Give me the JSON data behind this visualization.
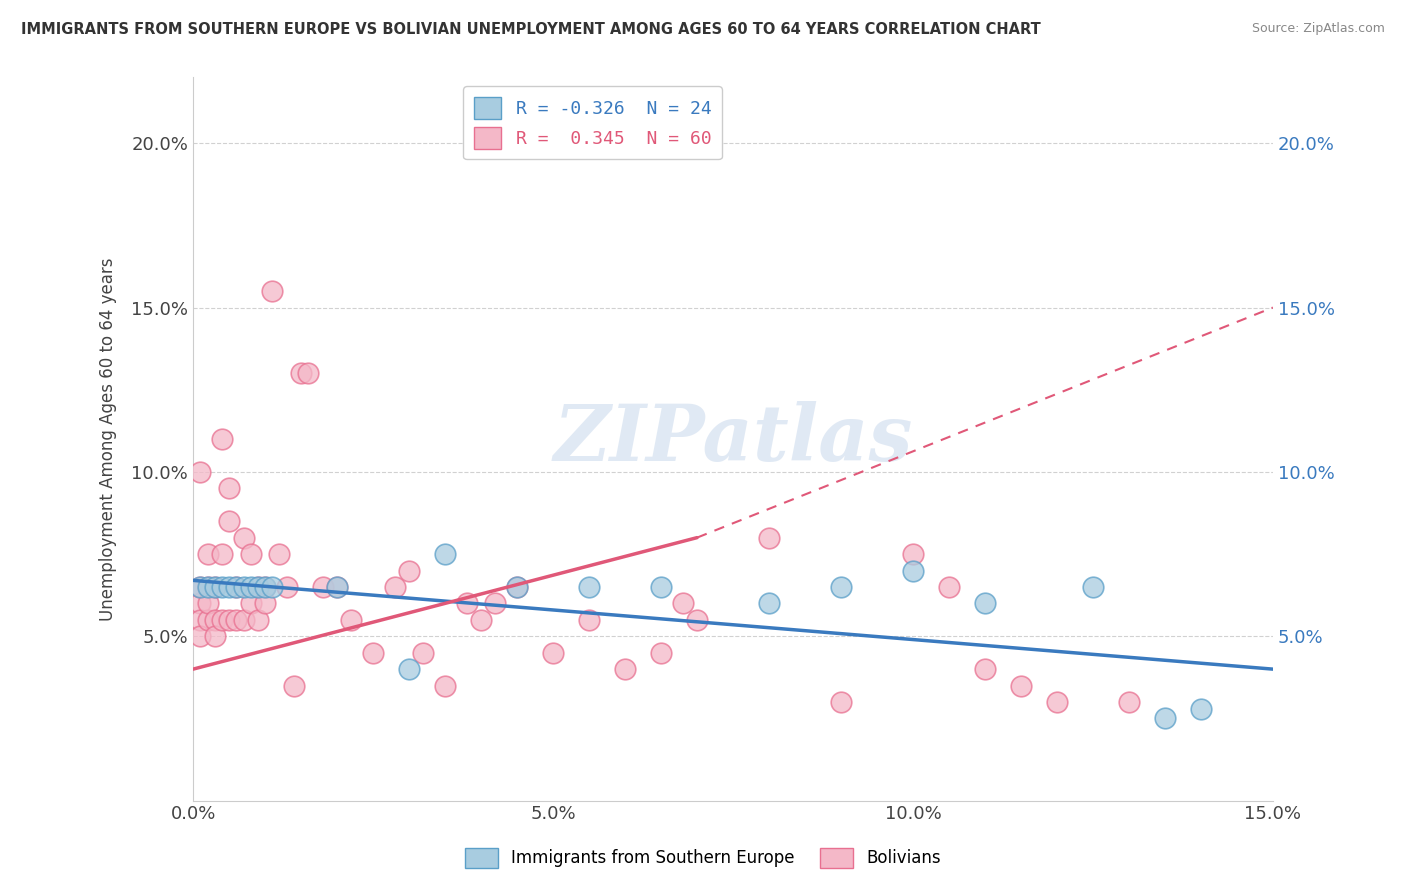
{
  "title": "IMMIGRANTS FROM SOUTHERN EUROPE VS BOLIVIAN UNEMPLOYMENT AMONG AGES 60 TO 64 YEARS CORRELATION CHART",
  "source": "Source: ZipAtlas.com",
  "ylabel": "Unemployment Among Ages 60 to 64 years",
  "xlim": [
    0.0,
    0.15
  ],
  "ylim": [
    0.0,
    0.22
  ],
  "yticks": [
    0.05,
    0.1,
    0.15,
    0.2
  ],
  "ytick_labels": [
    "5.0%",
    "10.0%",
    "15.0%",
    "20.0%"
  ],
  "xticks": [
    0.0,
    0.05,
    0.1,
    0.15
  ],
  "xtick_labels": [
    "0.0%",
    "5.0%",
    "10.0%",
    "15.0%"
  ],
  "blue_R": "-0.326",
  "blue_N": "24",
  "pink_R": "0.345",
  "pink_N": "60",
  "blue_color": "#a8cce0",
  "pink_color": "#f4b8c8",
  "blue_edge_color": "#5a9fc8",
  "pink_edge_color": "#e87090",
  "blue_line_color": "#3a7abf",
  "pink_line_color": "#e05878",
  "watermark": "ZIPatlas",
  "blue_scatter_x": [
    0.001,
    0.002,
    0.003,
    0.004,
    0.005,
    0.006,
    0.007,
    0.008,
    0.009,
    0.01,
    0.011,
    0.02,
    0.03,
    0.035,
    0.045,
    0.055,
    0.065,
    0.08,
    0.09,
    0.1,
    0.11,
    0.125,
    0.135,
    0.14
  ],
  "blue_scatter_y": [
    0.065,
    0.065,
    0.065,
    0.065,
    0.065,
    0.065,
    0.065,
    0.065,
    0.065,
    0.065,
    0.065,
    0.065,
    0.04,
    0.075,
    0.065,
    0.065,
    0.065,
    0.06,
    0.065,
    0.07,
    0.06,
    0.065,
    0.025,
    0.028
  ],
  "pink_scatter_x": [
    0.001,
    0.001,
    0.001,
    0.001,
    0.001,
    0.002,
    0.002,
    0.002,
    0.002,
    0.003,
    0.003,
    0.003,
    0.004,
    0.004,
    0.004,
    0.005,
    0.005,
    0.005,
    0.006,
    0.006,
    0.007,
    0.007,
    0.008,
    0.008,
    0.009,
    0.009,
    0.01,
    0.01,
    0.011,
    0.012,
    0.013,
    0.014,
    0.015,
    0.016,
    0.018,
    0.02,
    0.022,
    0.025,
    0.028,
    0.03,
    0.032,
    0.035,
    0.038,
    0.04,
    0.042,
    0.045,
    0.05,
    0.055,
    0.06,
    0.065,
    0.068,
    0.07,
    0.08,
    0.09,
    0.1,
    0.105,
    0.11,
    0.115,
    0.12,
    0.13
  ],
  "pink_scatter_y": [
    0.06,
    0.065,
    0.055,
    0.05,
    0.1,
    0.075,
    0.055,
    0.065,
    0.06,
    0.065,
    0.055,
    0.05,
    0.11,
    0.075,
    0.055,
    0.095,
    0.085,
    0.055,
    0.065,
    0.055,
    0.08,
    0.055,
    0.075,
    0.06,
    0.065,
    0.055,
    0.065,
    0.06,
    0.155,
    0.075,
    0.065,
    0.035,
    0.13,
    0.13,
    0.065,
    0.065,
    0.055,
    0.045,
    0.065,
    0.07,
    0.045,
    0.035,
    0.06,
    0.055,
    0.06,
    0.065,
    0.045,
    0.055,
    0.04,
    0.045,
    0.06,
    0.055,
    0.08,
    0.03,
    0.075,
    0.065,
    0.04,
    0.035,
    0.03,
    0.03
  ],
  "grid_color": "#cccccc",
  "bg_color": "white",
  "left_tick_color": "#444444",
  "right_tick_color": "#3a7abf"
}
